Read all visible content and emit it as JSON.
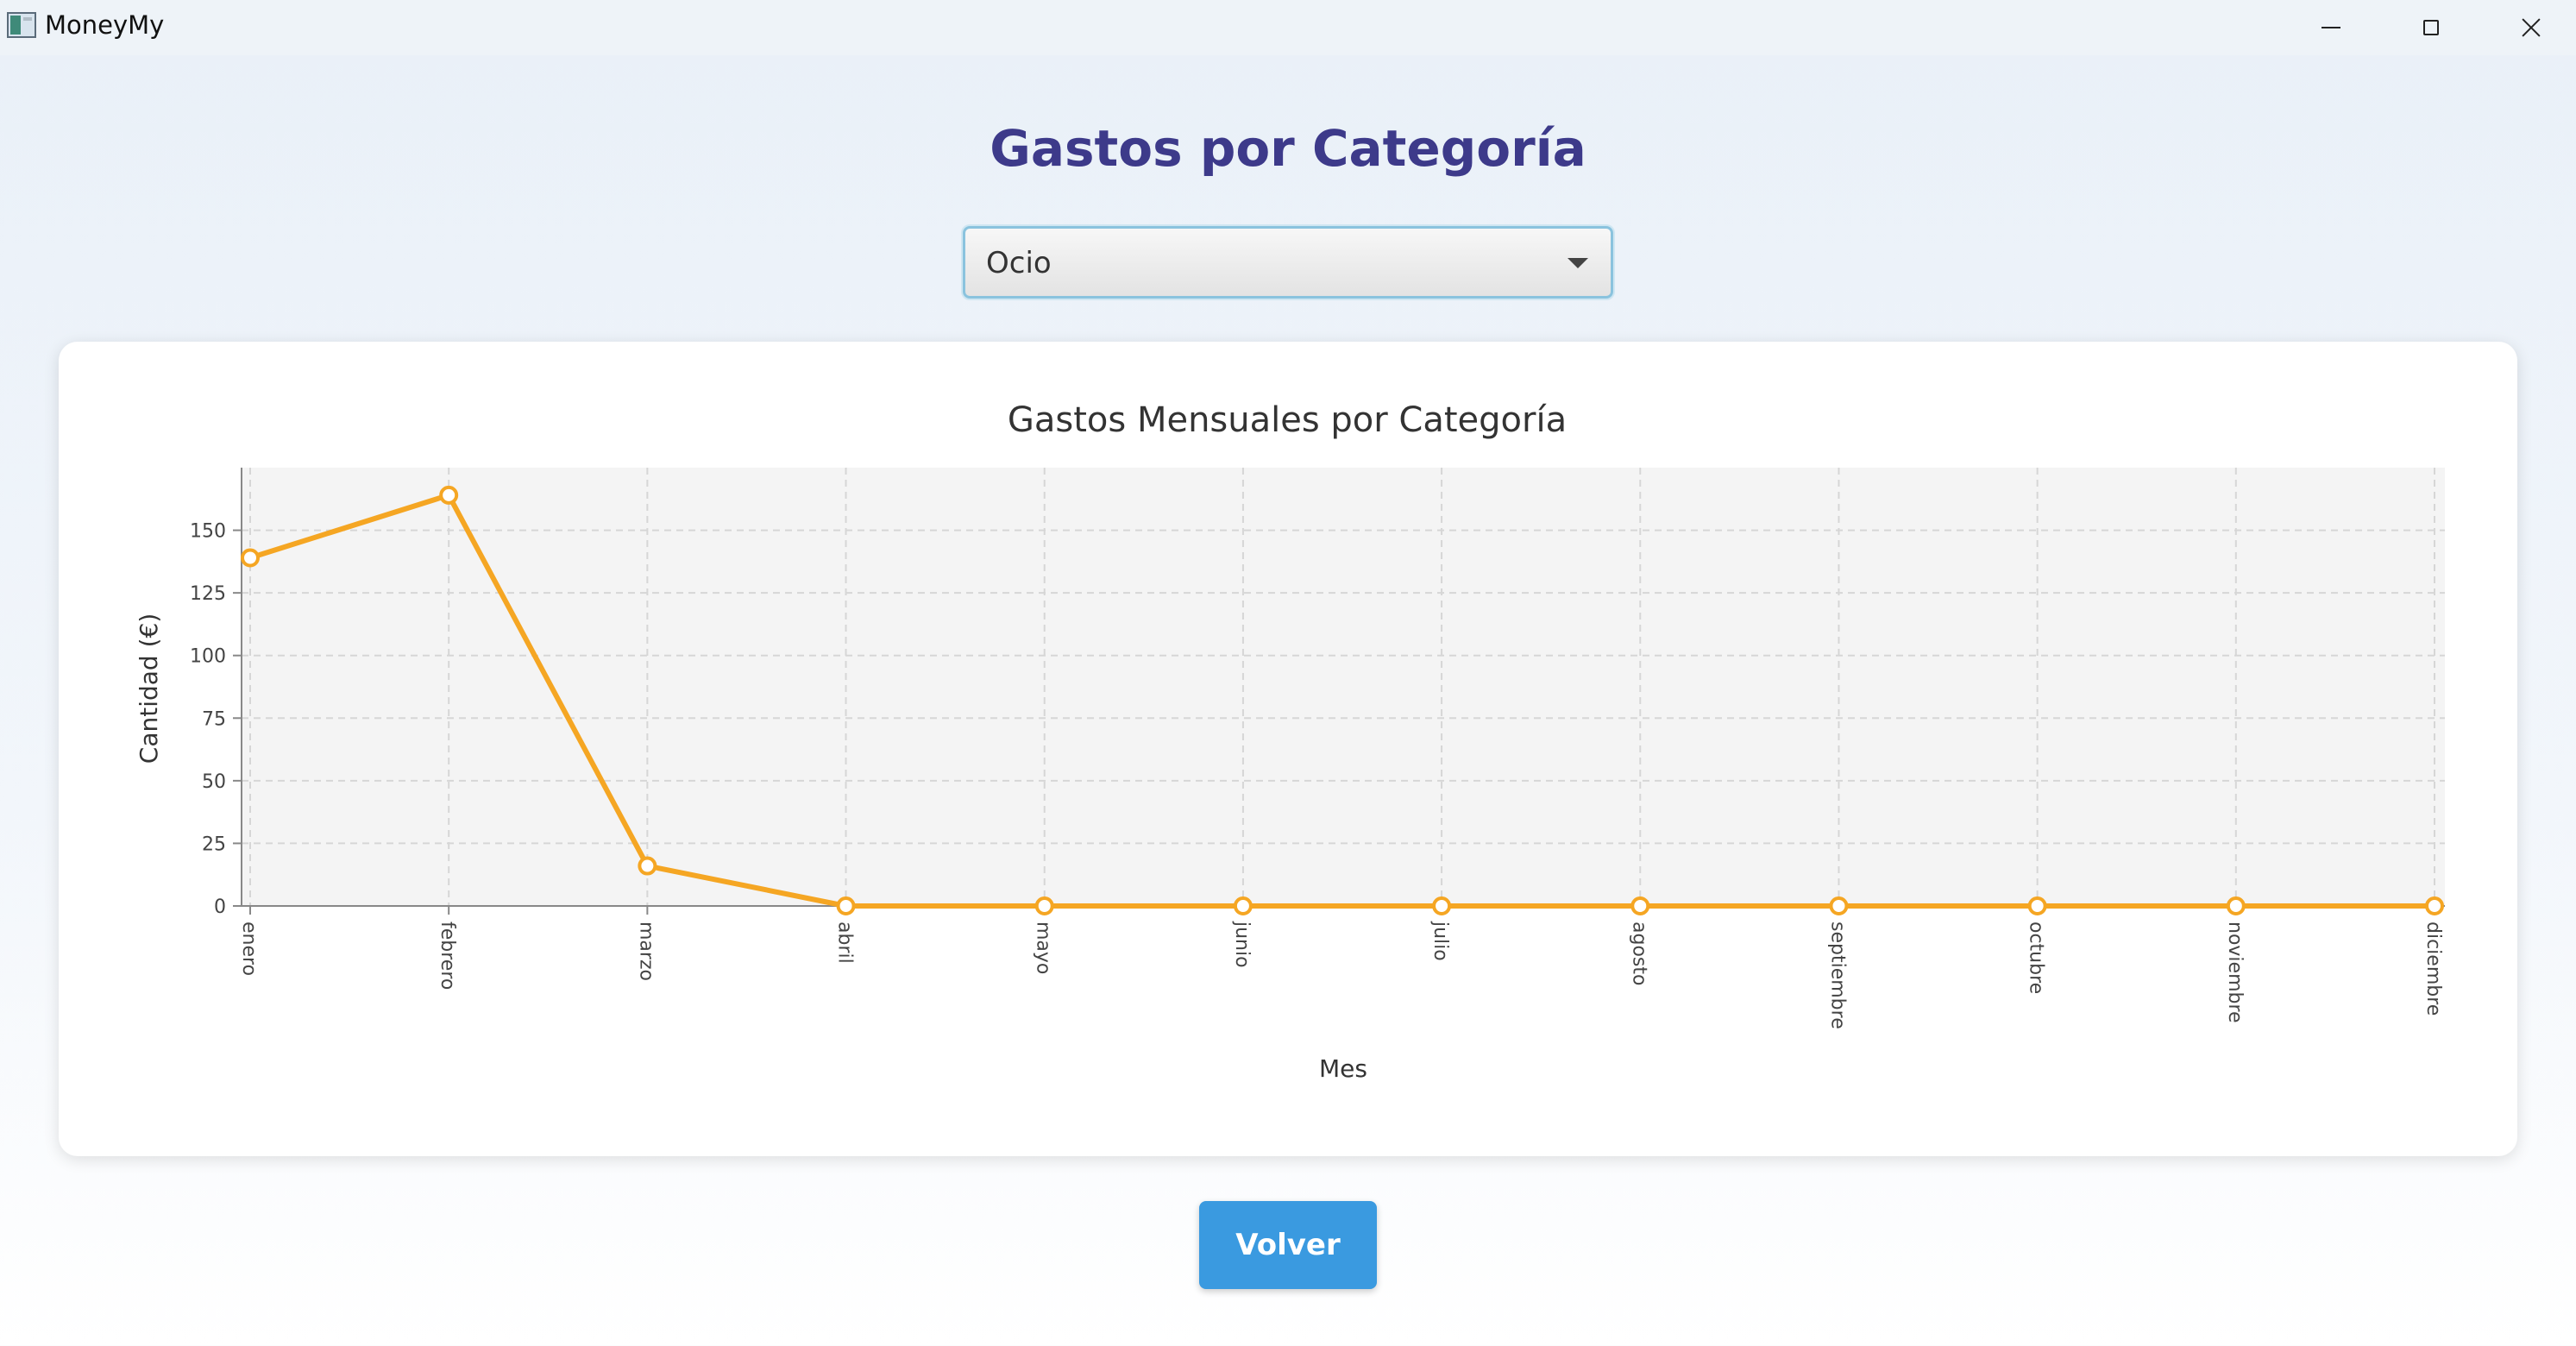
{
  "window": {
    "title": "MoneyMy"
  },
  "page": {
    "title": "Gastos por Categoría"
  },
  "category_select": {
    "value": "Ocio"
  },
  "back_button": {
    "label": "Volver"
  },
  "chart_data": {
    "type": "line",
    "title": "Gastos Mensuales por Categoría",
    "xlabel": "Mes",
    "ylabel": "Cantidad (€)",
    "categories": [
      "enero",
      "febrero",
      "marzo",
      "abril",
      "mayo",
      "junio",
      "julio",
      "agosto",
      "septiembre",
      "octubre",
      "noviembre",
      "diciembre"
    ],
    "series": [
      {
        "values": [
          139,
          164,
          16,
          0,
          0,
          0,
          0,
          0,
          0,
          0,
          0,
          0
        ],
        "color": "#f5a623"
      }
    ],
    "ylim": [
      0,
      175
    ],
    "yticks": [
      0,
      25,
      50,
      75,
      100,
      125,
      150
    ],
    "grid": true,
    "legend": "none"
  }
}
